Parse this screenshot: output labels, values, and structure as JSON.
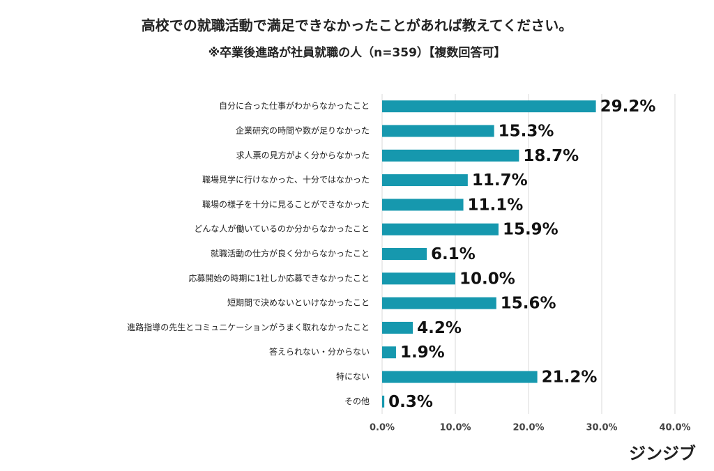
{
  "chart_data": {
    "type": "barh",
    "title": "高校での就職活動で満足できなかったことがあれば教えてください。",
    "subtitle": "※卒業後進路が社員就職の人（n=359）【複数回答可】",
    "categories": [
      "自分に合った仕事がわからなかったこと",
      "企業研究の時間や数が足りなかった",
      "求人票の見方がよく分からなかった",
      "職場見学に行けなかった、十分ではなかった",
      "職場の様子を十分に見ることができなかった",
      "どんな人が働いているのか分からなかったこと",
      "就職活動の仕方が良く分からなかったこと",
      "応募開始の時期に1社しか応募できなかったこと",
      "短期間で決めないといけなかったこと",
      "進路指導の先生とコミュニケーションがうまく取れなかったこと",
      "答えられない・分からない",
      "特にない",
      "その他"
    ],
    "values": [
      29.2,
      15.3,
      18.7,
      11.7,
      11.1,
      15.9,
      6.1,
      10.0,
      15.6,
      4.2,
      1.9,
      21.2,
      0.3
    ],
    "value_labels": [
      "29.2%",
      "15.3%",
      "18.7%",
      "11.7%",
      "11.1%",
      "15.9%",
      "6.1%",
      "10.0%",
      "15.6%",
      "4.2%",
      "1.9%",
      "21.2%",
      "0.3%"
    ],
    "color": "#1698ae",
    "xlim": [
      0,
      40
    ],
    "xticks": [
      {
        "value": 0,
        "label": "0.0%"
      },
      {
        "value": 10,
        "label": "10.0%"
      },
      {
        "value": 20,
        "label": "20.0%"
      },
      {
        "value": 30,
        "label": "30.0%"
      },
      {
        "value": 40,
        "label": "40.0%"
      }
    ],
    "grid": true,
    "brand": "ジンジブ"
  }
}
